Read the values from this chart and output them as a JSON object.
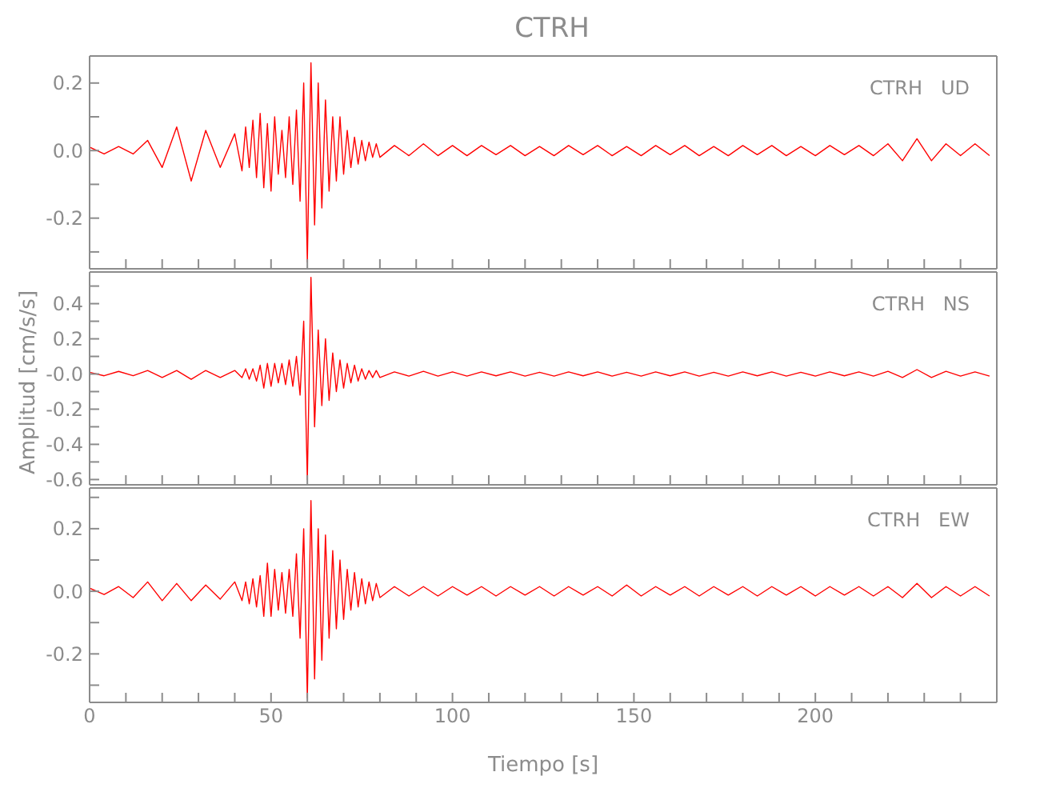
{
  "chart_data": [
    {
      "type": "line",
      "title": "CTRH",
      "annotations": [
        "CTRH   UD"
      ],
      "tick_labels": "y",
      "xlim": [
        0,
        250
      ],
      "xticks": [
        0,
        {
          "value": 10,
          "label": null
        },
        {
          "value": 20,
          "label": null
        },
        {
          "value": 30,
          "label": null
        },
        {
          "value": 40,
          "label": null
        },
        {
          "value": 50,
          "label": null
        },
        {
          "value": 60,
          "label": null
        },
        {
          "value": 70,
          "label": null
        },
        {
          "value": 80,
          "label": null
        },
        {
          "value": 90,
          "label": null
        },
        {
          "value": 100,
          "label": null
        },
        {
          "value": 110,
          "label": null
        },
        {
          "value": 120,
          "label": null
        },
        {
          "value": 130,
          "label": null
        },
        {
          "value": 140,
          "label": null
        },
        {
          "value": 150,
          "label": null
        },
        {
          "value": 160,
          "label": null
        },
        {
          "value": 170,
          "label": null
        },
        {
          "value": 180,
          "label": null
        },
        {
          "value": 190,
          "label": null
        },
        {
          "value": 200,
          "label": null
        },
        {
          "value": 210,
          "label": null
        },
        {
          "value": 220,
          "label": null
        },
        {
          "value": 230,
          "label": null
        },
        {
          "value": 240,
          "label": null
        }
      ],
      "ylim": [
        -0.35,
        0.28
      ],
      "yticks": [
        {
          "value": -0.3,
          "label": null
        },
        -0.2,
        {
          "value": -0.1,
          "label": null
        },
        {
          "value": 0,
          "label": "0.0"
        },
        {
          "value": 0.1,
          "label": null
        },
        0.2
      ],
      "x": [
        0,
        4,
        8,
        12,
        16,
        20,
        24,
        28,
        32,
        36,
        40,
        42,
        43,
        44,
        45,
        46,
        47,
        48,
        49,
        50,
        51,
        52,
        53,
        54,
        55,
        56,
        57,
        58,
        59,
        60,
        61,
        62,
        63,
        64,
        65,
        66,
        67,
        68,
        69,
        70,
        71,
        72,
        73,
        74,
        75,
        76,
        77,
        78,
        79,
        80,
        84,
        88,
        92,
        96,
        100,
        104,
        108,
        112,
        116,
        120,
        124,
        128,
        132,
        136,
        140,
        144,
        148,
        152,
        156,
        160,
        164,
        168,
        172,
        176,
        180,
        184,
        188,
        192,
        196,
        200,
        204,
        208,
        212,
        216,
        220,
        224,
        228,
        232,
        236,
        240,
        244,
        248
      ],
      "series": [
        {
          "color": "#ff0000",
          "values": [
            0.01,
            -0.01,
            0.012,
            -0.01,
            0.03,
            -0.05,
            0.07,
            -0.09,
            0.06,
            -0.05,
            0.05,
            -0.06,
            0.07,
            -0.05,
            0.09,
            -0.08,
            0.11,
            -0.11,
            0.08,
            -0.12,
            0.1,
            -0.07,
            0.06,
            -0.08,
            0.1,
            -0.1,
            0.12,
            -0.15,
            0.2,
            -0.33,
            0.26,
            -0.22,
            0.2,
            -0.17,
            0.15,
            -0.12,
            0.1,
            -0.09,
            0.1,
            -0.07,
            0.06,
            -0.05,
            0.04,
            -0.04,
            0.03,
            -0.03,
            0.025,
            -0.02,
            0.02,
            -0.02,
            0.015,
            -0.015,
            0.02,
            -0.015,
            0.015,
            -0.015,
            0.015,
            -0.012,
            0.015,
            -0.015,
            0.012,
            -0.015,
            0.015,
            -0.012,
            0.015,
            -0.015,
            0.012,
            -0.015,
            0.015,
            -0.012,
            0.015,
            -0.015,
            0.012,
            -0.015,
            0.015,
            -0.012,
            0.015,
            -0.015,
            0.012,
            -0.015,
            0.015,
            -0.012,
            0.015,
            -0.015,
            0.02,
            -0.03,
            0.035,
            -0.03,
            0.02,
            -0.015,
            0.02,
            -0.015
          ]
        }
      ]
    },
    {
      "type": "line",
      "ylabel": "Amplitud [cm/s/s]",
      "annotations": [
        "CTRH   NS"
      ],
      "tick_labels": "y",
      "xlim": [
        0,
        250
      ],
      "xticks": [
        0,
        {
          "value": 10,
          "label": null
        },
        {
          "value": 20,
          "label": null
        },
        {
          "value": 30,
          "label": null
        },
        {
          "value": 40,
          "label": null
        },
        {
          "value": 50,
          "label": null
        },
        {
          "value": 60,
          "label": null
        },
        {
          "value": 70,
          "label": null
        },
        {
          "value": 80,
          "label": null
        },
        {
          "value": 90,
          "label": null
        },
        {
          "value": 100,
          "label": null
        },
        {
          "value": 110,
          "label": null
        },
        {
          "value": 120,
          "label": null
        },
        {
          "value": 130,
          "label": null
        },
        {
          "value": 140,
          "label": null
        },
        {
          "value": 150,
          "label": null
        },
        {
          "value": 160,
          "label": null
        },
        {
          "value": 170,
          "label": null
        },
        {
          "value": 180,
          "label": null
        },
        {
          "value": 190,
          "label": null
        },
        {
          "value": 200,
          "label": null
        },
        {
          "value": 210,
          "label": null
        },
        {
          "value": 220,
          "label": null
        },
        {
          "value": 230,
          "label": null
        },
        {
          "value": 240,
          "label": null
        }
      ],
      "ylim": [
        -0.63,
        0.58
      ],
      "yticks": [
        -0.6,
        {
          "value": -0.5,
          "label": null
        },
        -0.4,
        {
          "value": -0.3,
          "label": null
        },
        -0.2,
        {
          "value": -0.1,
          "label": null
        },
        {
          "value": 0,
          "label": "-0.0"
        },
        {
          "value": 0.1,
          "label": null
        },
        0.2,
        {
          "value": 0.3,
          "label": null
        },
        0.4,
        {
          "value": 0.5,
          "label": null
        }
      ],
      "x": [
        0,
        4,
        8,
        12,
        16,
        20,
        24,
        28,
        32,
        36,
        40,
        42,
        43,
        44,
        45,
        46,
        47,
        48,
        49,
        50,
        51,
        52,
        53,
        54,
        55,
        56,
        57,
        58,
        59,
        60,
        61,
        62,
        63,
        64,
        65,
        66,
        67,
        68,
        69,
        70,
        71,
        72,
        73,
        74,
        75,
        76,
        77,
        78,
        79,
        80,
        84,
        88,
        92,
        96,
        100,
        104,
        108,
        112,
        116,
        120,
        124,
        128,
        132,
        136,
        140,
        144,
        148,
        152,
        156,
        160,
        164,
        168,
        172,
        176,
        180,
        184,
        188,
        192,
        196,
        200,
        204,
        208,
        212,
        216,
        220,
        224,
        228,
        232,
        236,
        240,
        244,
        248
      ],
      "series": [
        {
          "color": "#ff0000",
          "values": [
            0.01,
            -0.01,
            0.015,
            -0.01,
            0.02,
            -0.02,
            0.02,
            -0.03,
            0.02,
            -0.02,
            0.02,
            -0.02,
            0.03,
            -0.03,
            0.03,
            -0.04,
            0.05,
            -0.08,
            0.06,
            -0.07,
            0.06,
            -0.05,
            0.06,
            -0.06,
            0.08,
            -0.07,
            0.1,
            -0.12,
            0.3,
            -0.6,
            0.55,
            -0.3,
            0.25,
            -0.18,
            0.2,
            -0.15,
            0.12,
            -0.1,
            0.08,
            -0.08,
            0.06,
            -0.05,
            0.05,
            -0.04,
            0.03,
            -0.03,
            0.02,
            -0.02,
            0.02,
            -0.02,
            0.012,
            -0.012,
            0.015,
            -0.012,
            0.012,
            -0.012,
            0.012,
            -0.01,
            0.012,
            -0.012,
            0.01,
            -0.012,
            0.012,
            -0.01,
            0.012,
            -0.012,
            0.01,
            -0.012,
            0.012,
            -0.01,
            0.012,
            -0.012,
            0.01,
            -0.012,
            0.012,
            -0.01,
            0.012,
            -0.012,
            0.01,
            -0.012,
            0.012,
            -0.01,
            0.012,
            -0.012,
            0.015,
            -0.02,
            0.025,
            -0.02,
            0.015,
            -0.012,
            0.012,
            -0.012
          ]
        }
      ]
    },
    {
      "type": "line",
      "xlabel": "Tiempo [s]",
      "annotations": [
        "CTRH   EW"
      ],
      "xlim": [
        0,
        250
      ],
      "xticks": [
        0,
        {
          "value": 10,
          "label": null
        },
        {
          "value": 20,
          "label": null
        },
        {
          "value": 30,
          "label": null
        },
        {
          "value": 40,
          "label": null
        },
        50,
        {
          "value": 60,
          "label": null
        },
        {
          "value": 70,
          "label": null
        },
        {
          "value": 80,
          "label": null
        },
        {
          "value": 90,
          "label": null
        },
        100,
        {
          "value": 110,
          "label": null
        },
        {
          "value": 120,
          "label": null
        },
        {
          "value": 130,
          "label": null
        },
        {
          "value": 140,
          "label": null
        },
        150,
        {
          "value": 160,
          "label": null
        },
        {
          "value": 170,
          "label": null
        },
        {
          "value": 180,
          "label": null
        },
        {
          "value": 190,
          "label": null
        },
        200,
        {
          "value": 210,
          "label": null
        },
        {
          "value": 220,
          "label": null
        },
        {
          "value": 230,
          "label": null
        },
        {
          "value": 240,
          "label": null
        }
      ],
      "ylim": [
        -0.355,
        0.33
      ],
      "yticks": [
        {
          "value": -0.3,
          "label": null
        },
        -0.2,
        {
          "value": -0.1,
          "label": null
        },
        {
          "value": 0,
          "label": "0.0"
        },
        {
          "value": 0.1,
          "label": null
        },
        0.2,
        {
          "value": 0.3,
          "label": null
        }
      ],
      "x": [
        0,
        4,
        8,
        12,
        16,
        20,
        24,
        28,
        32,
        36,
        40,
        42,
        43,
        44,
        45,
        46,
        47,
        48,
        49,
        50,
        51,
        52,
        53,
        54,
        55,
        56,
        57,
        58,
        59,
        60,
        61,
        62,
        63,
        64,
        65,
        66,
        67,
        68,
        69,
        70,
        71,
        72,
        73,
        74,
        75,
        76,
        77,
        78,
        79,
        80,
        84,
        88,
        92,
        96,
        100,
        104,
        108,
        112,
        116,
        120,
        124,
        128,
        132,
        136,
        140,
        144,
        148,
        152,
        156,
        160,
        164,
        168,
        172,
        176,
        180,
        184,
        188,
        192,
        196,
        200,
        204,
        208,
        212,
        216,
        220,
        224,
        228,
        232,
        236,
        240,
        244,
        248
      ],
      "series": [
        {
          "color": "#ff0000",
          "values": [
            0.01,
            -0.01,
            0.015,
            -0.02,
            0.03,
            -0.03,
            0.025,
            -0.03,
            0.02,
            -0.025,
            0.03,
            -0.03,
            0.03,
            -0.04,
            0.04,
            -0.05,
            0.05,
            -0.08,
            0.09,
            -0.08,
            0.07,
            -0.06,
            0.06,
            -0.07,
            0.07,
            -0.08,
            0.12,
            -0.15,
            0.2,
            -0.34,
            0.29,
            -0.28,
            0.2,
            -0.22,
            0.18,
            -0.15,
            0.13,
            -0.12,
            0.1,
            -0.09,
            0.07,
            -0.06,
            0.06,
            -0.05,
            0.04,
            -0.04,
            0.03,
            -0.03,
            0.025,
            -0.02,
            0.015,
            -0.015,
            0.015,
            -0.015,
            0.015,
            -0.012,
            0.015,
            -0.015,
            0.015,
            -0.012,
            0.015,
            -0.015,
            0.015,
            -0.012,
            0.015,
            -0.015,
            0.02,
            -0.015,
            0.015,
            -0.012,
            0.015,
            -0.015,
            0.015,
            -0.012,
            0.015,
            -0.015,
            0.015,
            -0.012,
            0.015,
            -0.015,
            0.015,
            -0.012,
            0.015,
            -0.015,
            0.015,
            -0.02,
            0.025,
            -0.02,
            0.015,
            -0.015,
            0.015,
            -0.015
          ]
        }
      ]
    }
  ]
}
